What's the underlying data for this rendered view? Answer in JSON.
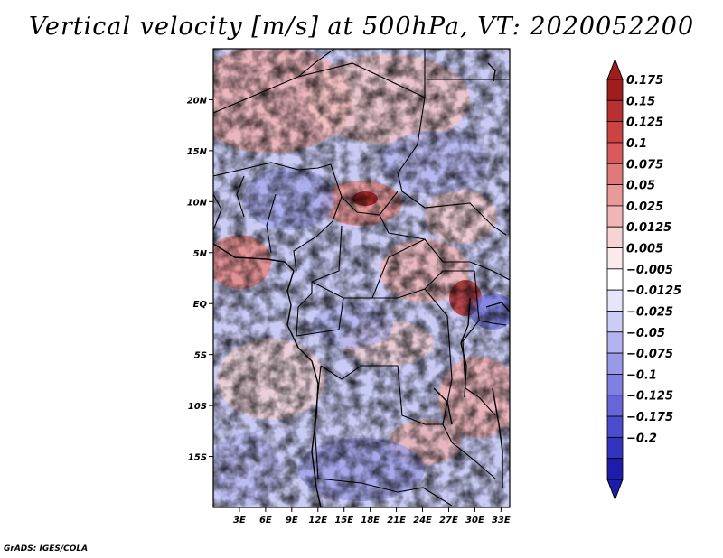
{
  "title": "Vertical velocity [m/s] at 500hPa, VT: 2020052200",
  "footer": "GrADS: IGES/COLA",
  "map": {
    "lat_labels": [
      "20N",
      "15N",
      "10N",
      "5N",
      "EQ",
      "5S",
      "10S",
      "15S"
    ],
    "lat_values": [
      20,
      15,
      10,
      5,
      0,
      -5,
      -10,
      -15
    ],
    "lon_labels": [
      "3E",
      "6E",
      "9E",
      "12E",
      "15E",
      "18E",
      "21E",
      "24E",
      "27E",
      "30E",
      "33E"
    ],
    "lon_values": [
      3,
      6,
      9,
      12,
      15,
      18,
      21,
      24,
      27,
      30,
      33
    ],
    "lat_range": [
      -20,
      25
    ],
    "lon_range": [
      0,
      34
    ]
  },
  "colorbar": {
    "labels": [
      "0.175",
      "0.15",
      "0.125",
      "0.1",
      "0.075",
      "0.05",
      "0.025",
      "0.0125",
      "0.005",
      "−0.005",
      "−0.0125",
      "−0.025",
      "−0.05",
      "−0.075",
      "−0.1",
      "−0.125",
      "−0.175",
      "−0.2"
    ],
    "colors": [
      "#a01d1d",
      "#b93030",
      "#cc4343",
      "#d85a5a",
      "#e07a7a",
      "#e89a9a",
      "#f0b5b5",
      "#f7d4d4",
      "#fbeaea",
      "#ffffff",
      "#e6e6fb",
      "#cccdf5",
      "#b3b3ef",
      "#9999e8",
      "#7f80e0",
      "#6666d6",
      "#4c4dcc",
      "#3333bf",
      "#1d1da9"
    ],
    "top_color": "#a01d1d",
    "bottom_color": "#1d1da9"
  }
}
